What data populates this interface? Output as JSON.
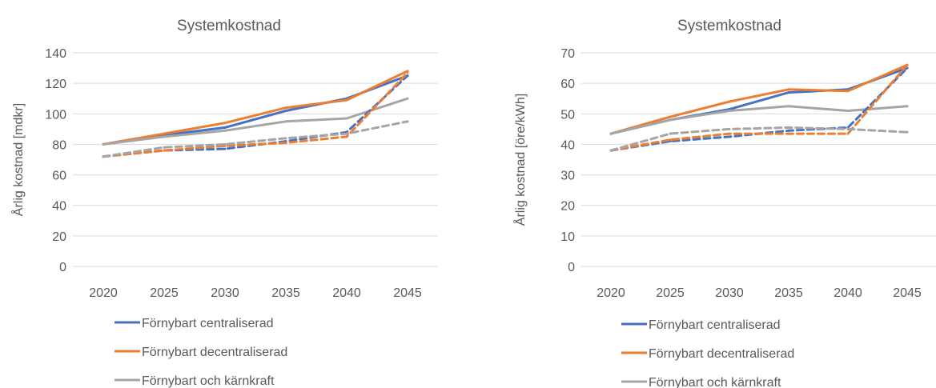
{
  "colors": {
    "renewable_central": "#4472C4",
    "renewable_decentral": "#ED7D31",
    "renewable_nuclear": "#A5A5A5",
    "grid": "#D9D9D9",
    "text": "#595959"
  },
  "legend_labels": [
    "Förnybart centraliserad",
    "Förnybart decentraliserad",
    "Förnybart och kärnkraft"
  ],
  "chart_data": [
    {
      "type": "line",
      "title": "Systemkostnad",
      "ylabel": "Årlig kostnad [mdkr]",
      "xlabel": "",
      "categories": [
        "2020",
        "2025",
        "2030",
        "2035",
        "2040",
        "2045"
      ],
      "ylim": [
        0,
        140
      ],
      "yticks": [
        "0",
        "20",
        "40",
        "60",
        "80",
        "100",
        "120",
        "140"
      ],
      "grid": true,
      "legend_position": "bottom-left",
      "series": [
        {
          "name": "Förnybart centraliserad",
          "line": "solid",
          "color": "#4472C4",
          "values": [
            80,
            86,
            91,
            102,
            110,
            125
          ]
        },
        {
          "name": "Förnybart decentraliserad",
          "line": "solid",
          "color": "#ED7D31",
          "values": [
            80,
            87,
            94,
            104,
            109,
            128
          ]
        },
        {
          "name": "Förnybart och kärnkraft",
          "line": "solid",
          "color": "#A5A5A5",
          "values": [
            80,
            85,
            89,
            95,
            97,
            110
          ]
        },
        {
          "name": "",
          "line": "dashed",
          "color": "#4472C4",
          "values": [
            72,
            76,
            77,
            82,
            88,
            125
          ]
        },
        {
          "name": "",
          "line": "dashed",
          "color": "#ED7D31",
          "values": [
            72,
            76,
            79,
            81,
            85,
            127
          ]
        },
        {
          "name": "",
          "line": "dashed",
          "color": "#A5A5A5",
          "values": [
            72,
            78,
            80,
            84,
            87,
            95
          ]
        }
      ]
    },
    {
      "type": "line",
      "title": "Systemkostnad",
      "ylabel": "Årlig kostnad [öre/kWh]",
      "xlabel": "",
      "categories": [
        "2020",
        "2025",
        "2030",
        "2035",
        "2040",
        "2045"
      ],
      "ylim": [
        0,
        70
      ],
      "yticks": [
        "0",
        "10",
        "20",
        "30",
        "40",
        "50",
        "60",
        "70"
      ],
      "grid": true,
      "legend_position": "bottom-left",
      "series": [
        {
          "name": "Förnybart centraliserad",
          "line": "solid",
          "color": "#4472C4",
          "values": [
            43.5,
            48,
            51.5,
            57,
            58,
            65
          ]
        },
        {
          "name": "Förnybart decentraliserad",
          "line": "solid",
          "color": "#ED7D31",
          "values": [
            43.5,
            49,
            54,
            58,
            57.5,
            66
          ]
        },
        {
          "name": "Förnybart och kärnkraft",
          "line": "solid",
          "color": "#A5A5A5",
          "values": [
            43.5,
            48,
            51,
            52.5,
            51,
            52.5
          ]
        },
        {
          "name": "",
          "line": "dashed",
          "color": "#4472C4",
          "values": [
            38,
            41,
            42.5,
            44.5,
            45.5,
            65
          ]
        },
        {
          "name": "",
          "line": "dashed",
          "color": "#ED7D31",
          "values": [
            38,
            41.5,
            43.5,
            43.5,
            43.5,
            66
          ]
        },
        {
          "name": "",
          "line": "dashed",
          "color": "#A5A5A5",
          "values": [
            38,
            43.5,
            45,
            45.5,
            45,
            44
          ]
        }
      ]
    }
  ]
}
